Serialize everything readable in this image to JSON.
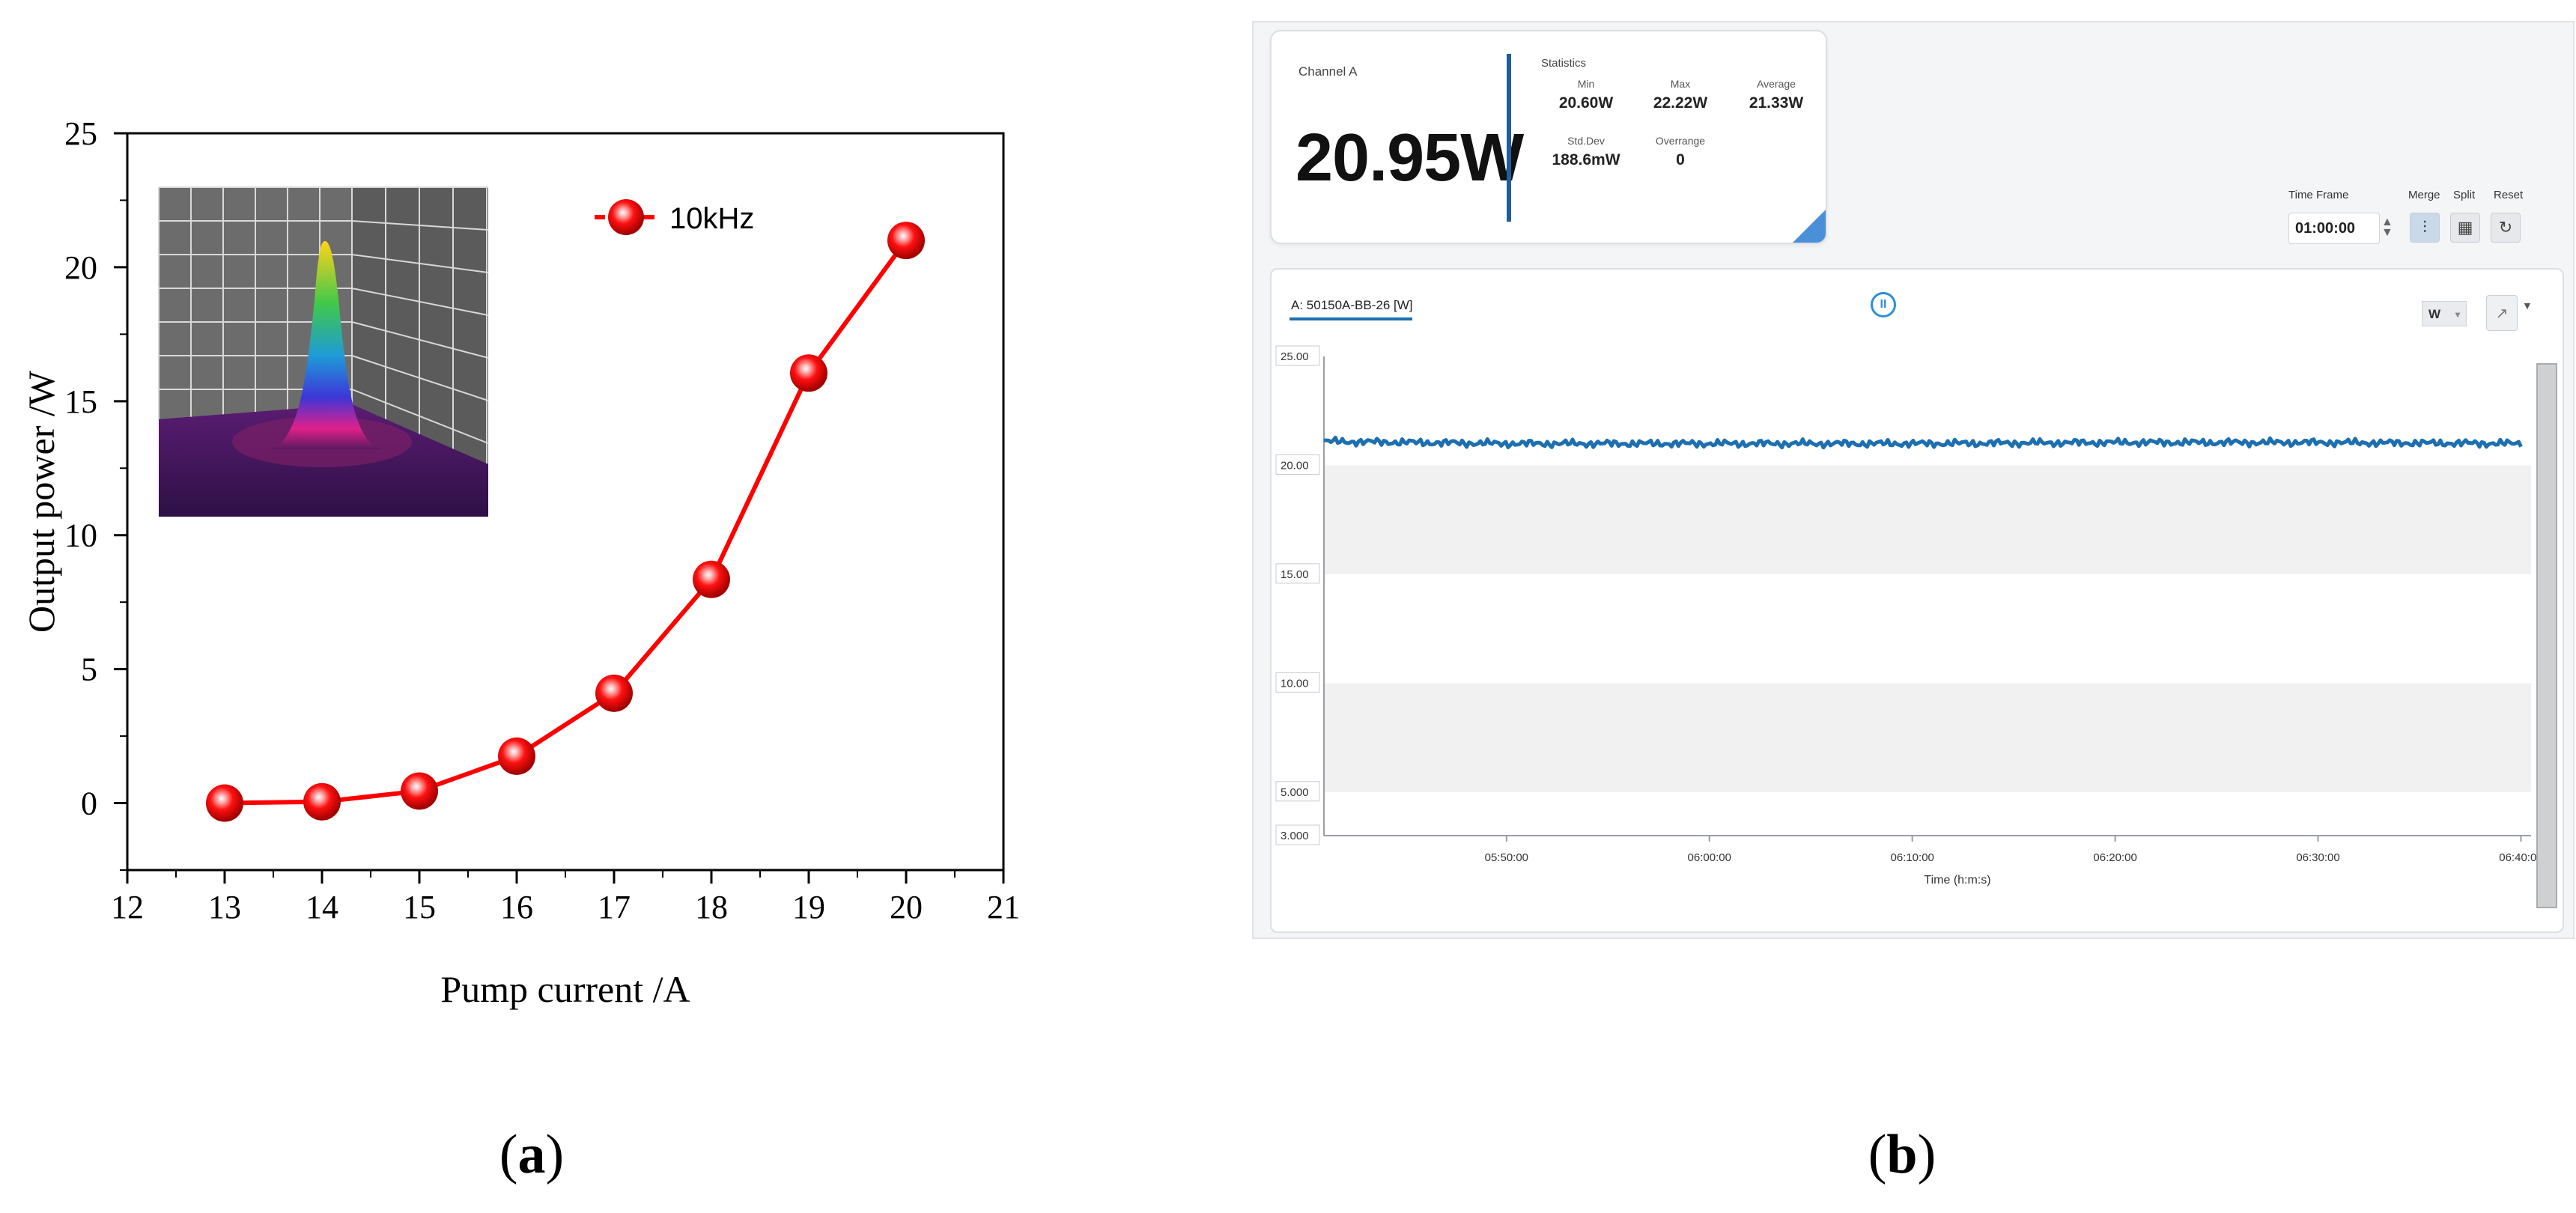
{
  "captions": {
    "a_open": "(",
    "a_letter": "a",
    "a_close": ")",
    "b_open": "(",
    "b_letter": "b",
    "b_close": ")"
  },
  "chart_data": [
    {
      "type": "line",
      "title": "",
      "xlabel": "Pump current /A",
      "ylabel": "Output power /W",
      "xlim": [
        12,
        21
      ],
      "ylim": [
        -2.5,
        25
      ],
      "xticks": [
        12,
        13,
        14,
        15,
        16,
        17,
        18,
        19,
        20,
        21
      ],
      "yticks": [
        0,
        5,
        10,
        15,
        20,
        25
      ],
      "legend_position": "top-right",
      "inset": "3D beam profile image (top-left)",
      "series": [
        {
          "name": "10kHz",
          "color": "#ff0000",
          "x": [
            13,
            14,
            15,
            16,
            17,
            18,
            19,
            20
          ],
          "y": [
            0.0,
            0.05,
            0.45,
            1.75,
            4.1,
            8.35,
            16.05,
            21.0
          ]
        }
      ]
    },
    {
      "type": "line",
      "title": "",
      "xlabel": "Time (h:m:s)",
      "ylabel": "",
      "ylim": [
        3.0,
        25.0
      ],
      "yticks": [
        "25.00",
        "20.00",
        "15.00",
        "10.00",
        "5.000",
        "3.000"
      ],
      "xticks": [
        "05:50:00",
        "06:00:00",
        "06:10:00",
        "06:20:00",
        "06:30:00",
        "06:40:00"
      ],
      "series": [
        {
          "name": "A: 50150A-BB-26 [W]",
          "color": "#1d6fb0",
          "x": [
            "05:41:00",
            "05:50:00",
            "06:00:00",
            "06:10:00",
            "06:20:00",
            "06:30:00",
            "06:40:00"
          ],
          "y": [
            21.1,
            21.0,
            21.0,
            21.0,
            21.05,
            21.05,
            21.0
          ]
        }
      ]
    }
  ],
  "ui": {
    "channel_label": "Channel A",
    "big_value": "20.95W",
    "stats_title": "Statistics",
    "stats": [
      {
        "label": "Min",
        "value": "20.60W"
      },
      {
        "label": "Max",
        "value": "22.22W"
      },
      {
        "label": "Average",
        "value": "21.33W"
      },
      {
        "label": "Std.Dev",
        "value": "188.6mW"
      },
      {
        "label": "Overrange",
        "value": "0"
      }
    ],
    "time_frame_label": "Time Frame",
    "time_frame_value": "01:00:00",
    "merge_label": "Merge",
    "split_label": "Split",
    "reset_label": "Reset",
    "series_label": "A: 50150A-BB-26 [W]",
    "unit_value": "W",
    "accent_color": "#1d6fb0"
  }
}
